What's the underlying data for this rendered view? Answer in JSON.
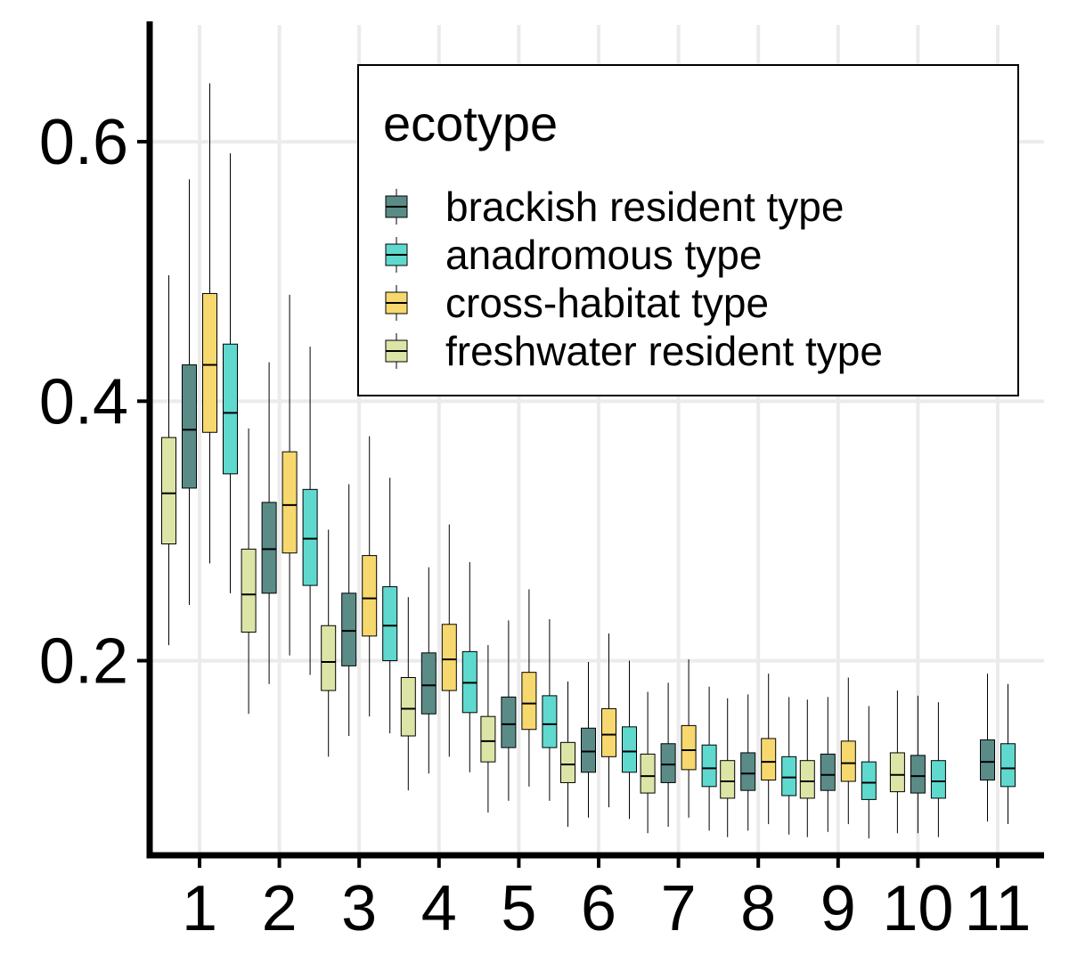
{
  "chart_data": {
    "type": "boxplot",
    "title": "",
    "xlabel": "",
    "ylabel": "",
    "categories": [
      "1",
      "2",
      "3",
      "4",
      "5",
      "6",
      "7",
      "8",
      "9",
      "10",
      "11"
    ],
    "ylim": [
      0.05,
      0.69
    ],
    "yticks": [
      0.2,
      0.4,
      0.6
    ],
    "ytick_labels": [
      "0.2",
      "0.4",
      "0.6"
    ],
    "grid": true,
    "legend": {
      "title": "ecotype",
      "placement": "top-right",
      "order": [
        "brackish",
        "anadromous",
        "cross",
        "freshwater"
      ]
    },
    "draw_order": [
      "freshwater",
      "brackish",
      "cross",
      "anadromous"
    ],
    "series": [
      {
        "key": "freshwater",
        "name": "freshwater resident type",
        "color": "#dde5a6",
        "boxes": [
          {
            "category": "1",
            "whislo": 0.212,
            "q1": 0.29,
            "median": 0.329,
            "q3": 0.372,
            "whishi": 0.497
          },
          {
            "category": "2",
            "whislo": 0.159,
            "q1": 0.222,
            "median": 0.251,
            "q3": 0.286,
            "whishi": 0.379
          },
          {
            "category": "3",
            "whislo": 0.126,
            "q1": 0.177,
            "median": 0.199,
            "q3": 0.227,
            "whishi": 0.301
          },
          {
            "category": "4",
            "whislo": 0.1,
            "q1": 0.142,
            "median": 0.163,
            "q3": 0.187,
            "whishi": 0.249
          },
          {
            "category": "5",
            "whislo": 0.083,
            "q1": 0.122,
            "median": 0.138,
            "q3": 0.157,
            "whishi": 0.212
          },
          {
            "category": "6",
            "whislo": 0.072,
            "q1": 0.106,
            "median": 0.12,
            "q3": 0.137,
            "whishi": 0.184
          },
          {
            "category": "7",
            "whislo": 0.067,
            "q1": 0.098,
            "median": 0.111,
            "q3": 0.128,
            "whishi": 0.176
          },
          {
            "category": "8",
            "whislo": 0.064,
            "q1": 0.094,
            "median": 0.107,
            "q3": 0.123,
            "whishi": 0.171
          },
          {
            "category": "9",
            "whislo": 0.064,
            "q1": 0.094,
            "median": 0.107,
            "q3": 0.123,
            "whishi": 0.17
          },
          {
            "category": "10",
            "whislo": 0.067,
            "q1": 0.099,
            "median": 0.112,
            "q3": 0.129,
            "whishi": 0.177
          }
        ]
      },
      {
        "key": "brackish",
        "name": "brackish resident type",
        "color": "#5a8b87",
        "boxes": [
          {
            "category": "1",
            "whislo": 0.243,
            "q1": 0.333,
            "median": 0.378,
            "q3": 0.428,
            "whishi": 0.571
          },
          {
            "category": "2",
            "whislo": 0.182,
            "q1": 0.252,
            "median": 0.286,
            "q3": 0.322,
            "whishi": 0.43
          },
          {
            "category": "3",
            "whislo": 0.142,
            "q1": 0.196,
            "median": 0.223,
            "q3": 0.252,
            "whishi": 0.336
          },
          {
            "category": "4",
            "whislo": 0.113,
            "q1": 0.159,
            "median": 0.181,
            "q3": 0.206,
            "whishi": 0.272
          },
          {
            "category": "5",
            "whislo": 0.092,
            "q1": 0.133,
            "median": 0.151,
            "q3": 0.172,
            "whishi": 0.231
          },
          {
            "category": "6",
            "whislo": 0.079,
            "q1": 0.114,
            "median": 0.13,
            "q3": 0.148,
            "whishi": 0.199
          },
          {
            "category": "7",
            "whislo": 0.072,
            "q1": 0.106,
            "median": 0.12,
            "q3": 0.136,
            "whishi": 0.183
          },
          {
            "category": "8",
            "whislo": 0.069,
            "q1": 0.1,
            "median": 0.113,
            "q3": 0.129,
            "whishi": 0.174
          },
          {
            "category": "9",
            "whislo": 0.068,
            "q1": 0.1,
            "median": 0.112,
            "q3": 0.128,
            "whishi": 0.172
          },
          {
            "category": "10",
            "whislo": 0.067,
            "q1": 0.098,
            "median": 0.111,
            "q3": 0.127,
            "whishi": 0.173
          },
          {
            "category": "11",
            "whislo": 0.076,
            "q1": 0.108,
            "median": 0.122,
            "q3": 0.139,
            "whishi": 0.19
          }
        ]
      },
      {
        "key": "cross",
        "name": "cross-habitat type",
        "color": "#f7d86e",
        "boxes": [
          {
            "category": "1",
            "whislo": 0.275,
            "q1": 0.376,
            "median": 0.428,
            "q3": 0.483,
            "whishi": 0.645
          },
          {
            "category": "2",
            "whislo": 0.204,
            "q1": 0.283,
            "median": 0.32,
            "q3": 0.361,
            "whishi": 0.482
          },
          {
            "category": "3",
            "whislo": 0.157,
            "q1": 0.219,
            "median": 0.248,
            "q3": 0.281,
            "whishi": 0.373
          },
          {
            "category": "4",
            "whislo": 0.126,
            "q1": 0.177,
            "median": 0.201,
            "q3": 0.228,
            "whishi": 0.305
          },
          {
            "category": "5",
            "whislo": 0.103,
            "q1": 0.147,
            "median": 0.167,
            "q3": 0.191,
            "whishi": 0.255
          },
          {
            "category": "6",
            "whislo": 0.087,
            "q1": 0.126,
            "median": 0.143,
            "q3": 0.163,
            "whishi": 0.221
          },
          {
            "category": "7",
            "whislo": 0.079,
            "q1": 0.116,
            "median": 0.131,
            "q3": 0.15,
            "whishi": 0.201
          },
          {
            "category": "8",
            "whislo": 0.074,
            "q1": 0.108,
            "median": 0.122,
            "q3": 0.14,
            "whishi": 0.19
          },
          {
            "category": "9",
            "whislo": 0.074,
            "q1": 0.107,
            "median": 0.121,
            "q3": 0.138,
            "whishi": 0.187
          }
        ]
      },
      {
        "key": "anadromous",
        "name": "anadromous type",
        "color": "#5fd9ce",
        "boxes": [
          {
            "category": "1",
            "whislo": 0.252,
            "q1": 0.344,
            "median": 0.391,
            "q3": 0.444,
            "whishi": 0.591
          },
          {
            "category": "2",
            "whislo": 0.189,
            "q1": 0.258,
            "median": 0.294,
            "q3": 0.332,
            "whishi": 0.442
          },
          {
            "category": "3",
            "whislo": 0.144,
            "q1": 0.2,
            "median": 0.227,
            "q3": 0.257,
            "whishi": 0.341
          },
          {
            "category": "4",
            "whislo": 0.114,
            "q1": 0.16,
            "median": 0.183,
            "q3": 0.207,
            "whishi": 0.276
          },
          {
            "category": "5",
            "whislo": 0.092,
            "q1": 0.133,
            "median": 0.151,
            "q3": 0.173,
            "whishi": 0.232
          },
          {
            "category": "6",
            "whislo": 0.078,
            "q1": 0.114,
            "median": 0.13,
            "q3": 0.149,
            "whishi": 0.2
          },
          {
            "category": "7",
            "whislo": 0.069,
            "q1": 0.103,
            "median": 0.117,
            "q3": 0.135,
            "whishi": 0.18
          },
          {
            "category": "8",
            "whislo": 0.066,
            "q1": 0.096,
            "median": 0.11,
            "q3": 0.126,
            "whishi": 0.172
          },
          {
            "category": "9",
            "whislo": 0.063,
            "q1": 0.093,
            "median": 0.106,
            "q3": 0.122,
            "whishi": 0.165
          },
          {
            "category": "10",
            "whislo": 0.064,
            "q1": 0.094,
            "median": 0.107,
            "q3": 0.123,
            "whishi": 0.168
          },
          {
            "category": "11",
            "whislo": 0.074,
            "q1": 0.103,
            "median": 0.117,
            "q3": 0.136,
            "whishi": 0.182
          }
        ]
      }
    ]
  }
}
